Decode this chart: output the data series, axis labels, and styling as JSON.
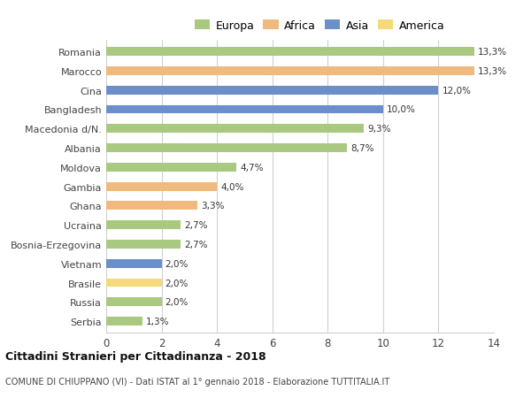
{
  "countries": [
    "Romania",
    "Marocco",
    "Cina",
    "Bangladesh",
    "Macedonia d/N.",
    "Albania",
    "Moldova",
    "Gambia",
    "Ghana",
    "Ucraina",
    "Bosnia-Erzegovina",
    "Vietnam",
    "Brasile",
    "Russia",
    "Serbia"
  ],
  "values": [
    13.3,
    13.3,
    12.0,
    10.0,
    9.3,
    8.7,
    4.7,
    4.0,
    3.3,
    2.7,
    2.7,
    2.0,
    2.0,
    2.0,
    1.3
  ],
  "labels": [
    "13,3%",
    "13,3%",
    "12,0%",
    "10,0%",
    "9,3%",
    "8,7%",
    "4,7%",
    "4,0%",
    "3,3%",
    "2,7%",
    "2,7%",
    "2,0%",
    "2,0%",
    "2,0%",
    "1,3%"
  ],
  "colors": [
    "#a8c97f",
    "#f0b97d",
    "#6b8fc9",
    "#6b8fc9",
    "#a8c97f",
    "#a8c97f",
    "#a8c97f",
    "#f0b97d",
    "#f0b97d",
    "#a8c97f",
    "#a8c97f",
    "#6b8fc9",
    "#f5d97a",
    "#a8c97f",
    "#a8c97f"
  ],
  "legend": {
    "labels": [
      "Europa",
      "Africa",
      "Asia",
      "America"
    ],
    "colors": [
      "#a8c97f",
      "#f0b97d",
      "#6b8fc9",
      "#f5d97a"
    ]
  },
  "xlim": [
    0,
    14
  ],
  "xticks": [
    0,
    2,
    4,
    6,
    8,
    10,
    12,
    14
  ],
  "title": "Cittadini Stranieri per Cittadinanza - 2018",
  "subtitle": "COMUNE DI CHIUPPANO (VI) - Dati ISTAT al 1° gennaio 2018 - Elaborazione TUTTITALIA.IT",
  "background_color": "#ffffff",
  "grid_color": "#d0d0d0",
  "bar_height": 0.45
}
